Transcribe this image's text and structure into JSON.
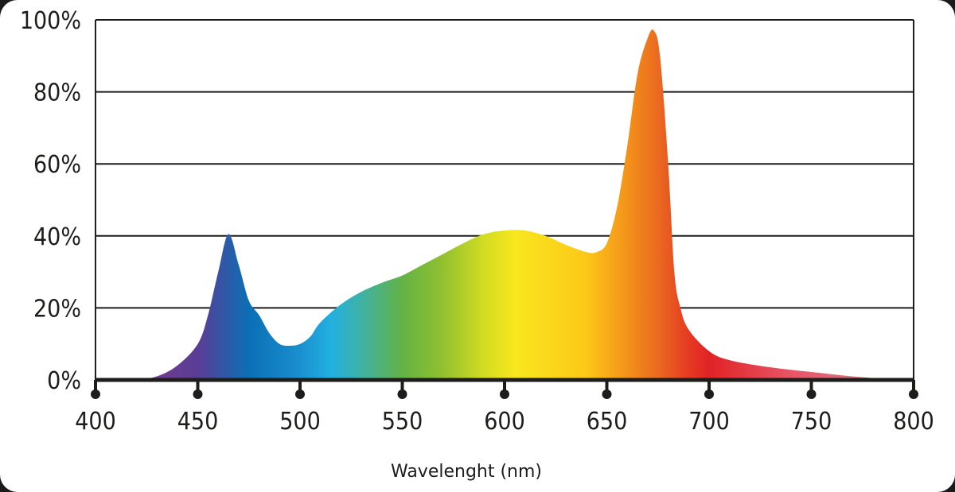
{
  "chart_data": {
    "type": "area",
    "title": "",
    "xlabel": "Wavelenght (nm)",
    "ylabel": "",
    "xlim": [
      400,
      800
    ],
    "ylim": [
      0,
      100
    ],
    "x_ticks": [
      400,
      450,
      500,
      550,
      600,
      650,
      700,
      750,
      800
    ],
    "x_tick_labels": [
      "400",
      "450",
      "500",
      "550",
      "600",
      "650",
      "700",
      "750",
      "800"
    ],
    "y_ticks": [
      0,
      20,
      40,
      60,
      80,
      100
    ],
    "y_tick_labels": [
      "0%",
      "20%",
      "40%",
      "60%",
      "80%",
      "100%"
    ],
    "grid": "horizontal",
    "fill": "spectral gradient (violet to red)",
    "series": [
      {
        "x": [
          400,
          420,
          430,
          440,
          450,
          455,
          460,
          465,
          470,
          475,
          480,
          485,
          490,
          495,
          500,
          505,
          510,
          520,
          530,
          540,
          550,
          560,
          570,
          580,
          590,
          600,
          610,
          620,
          630,
          640,
          645,
          650,
          655,
          660,
          665,
          670,
          673,
          676,
          680,
          683,
          686,
          690,
          700,
          710,
          730,
          750,
          770,
          790,
          800
        ],
        "y": [
          0,
          0.2,
          1,
          4,
          10,
          18,
          30,
          40.5,
          32,
          22,
          18,
          13,
          10,
          9.5,
          10,
          12,
          16,
          21,
          24.5,
          27,
          29,
          32,
          35,
          38,
          40.5,
          41.5,
          41.5,
          40,
          37.5,
          35.5,
          35.5,
          38,
          48,
          65,
          85,
          95,
          97,
          90,
          60,
          30,
          20,
          14,
          8,
          5.5,
          3.5,
          2.2,
          1,
          0.2,
          0.5
        ]
      }
    ],
    "colors": {
      "axis": "#1d1d1b",
      "gradient": [
        [
          420,
          "#7a3c8e"
        ],
        [
          450,
          "#5a3d96"
        ],
        [
          465,
          "#2b5ba8"
        ],
        [
          475,
          "#0b6fb5"
        ],
        [
          500,
          "#1a8fd0"
        ],
        [
          515,
          "#21b0e0"
        ],
        [
          530,
          "#3fb2a4"
        ],
        [
          550,
          "#63b245"
        ],
        [
          570,
          "#92c130"
        ],
        [
          590,
          "#d2dc22"
        ],
        [
          605,
          "#f8e71e"
        ],
        [
          640,
          "#fcc818"
        ],
        [
          660,
          "#f3921a"
        ],
        [
          675,
          "#ea6a20"
        ],
        [
          690,
          "#e53a22"
        ],
        [
          700,
          "#e02326"
        ],
        [
          740,
          "#e85566"
        ],
        [
          770,
          "#d87080"
        ],
        [
          795,
          "#555555"
        ]
      ]
    }
  }
}
